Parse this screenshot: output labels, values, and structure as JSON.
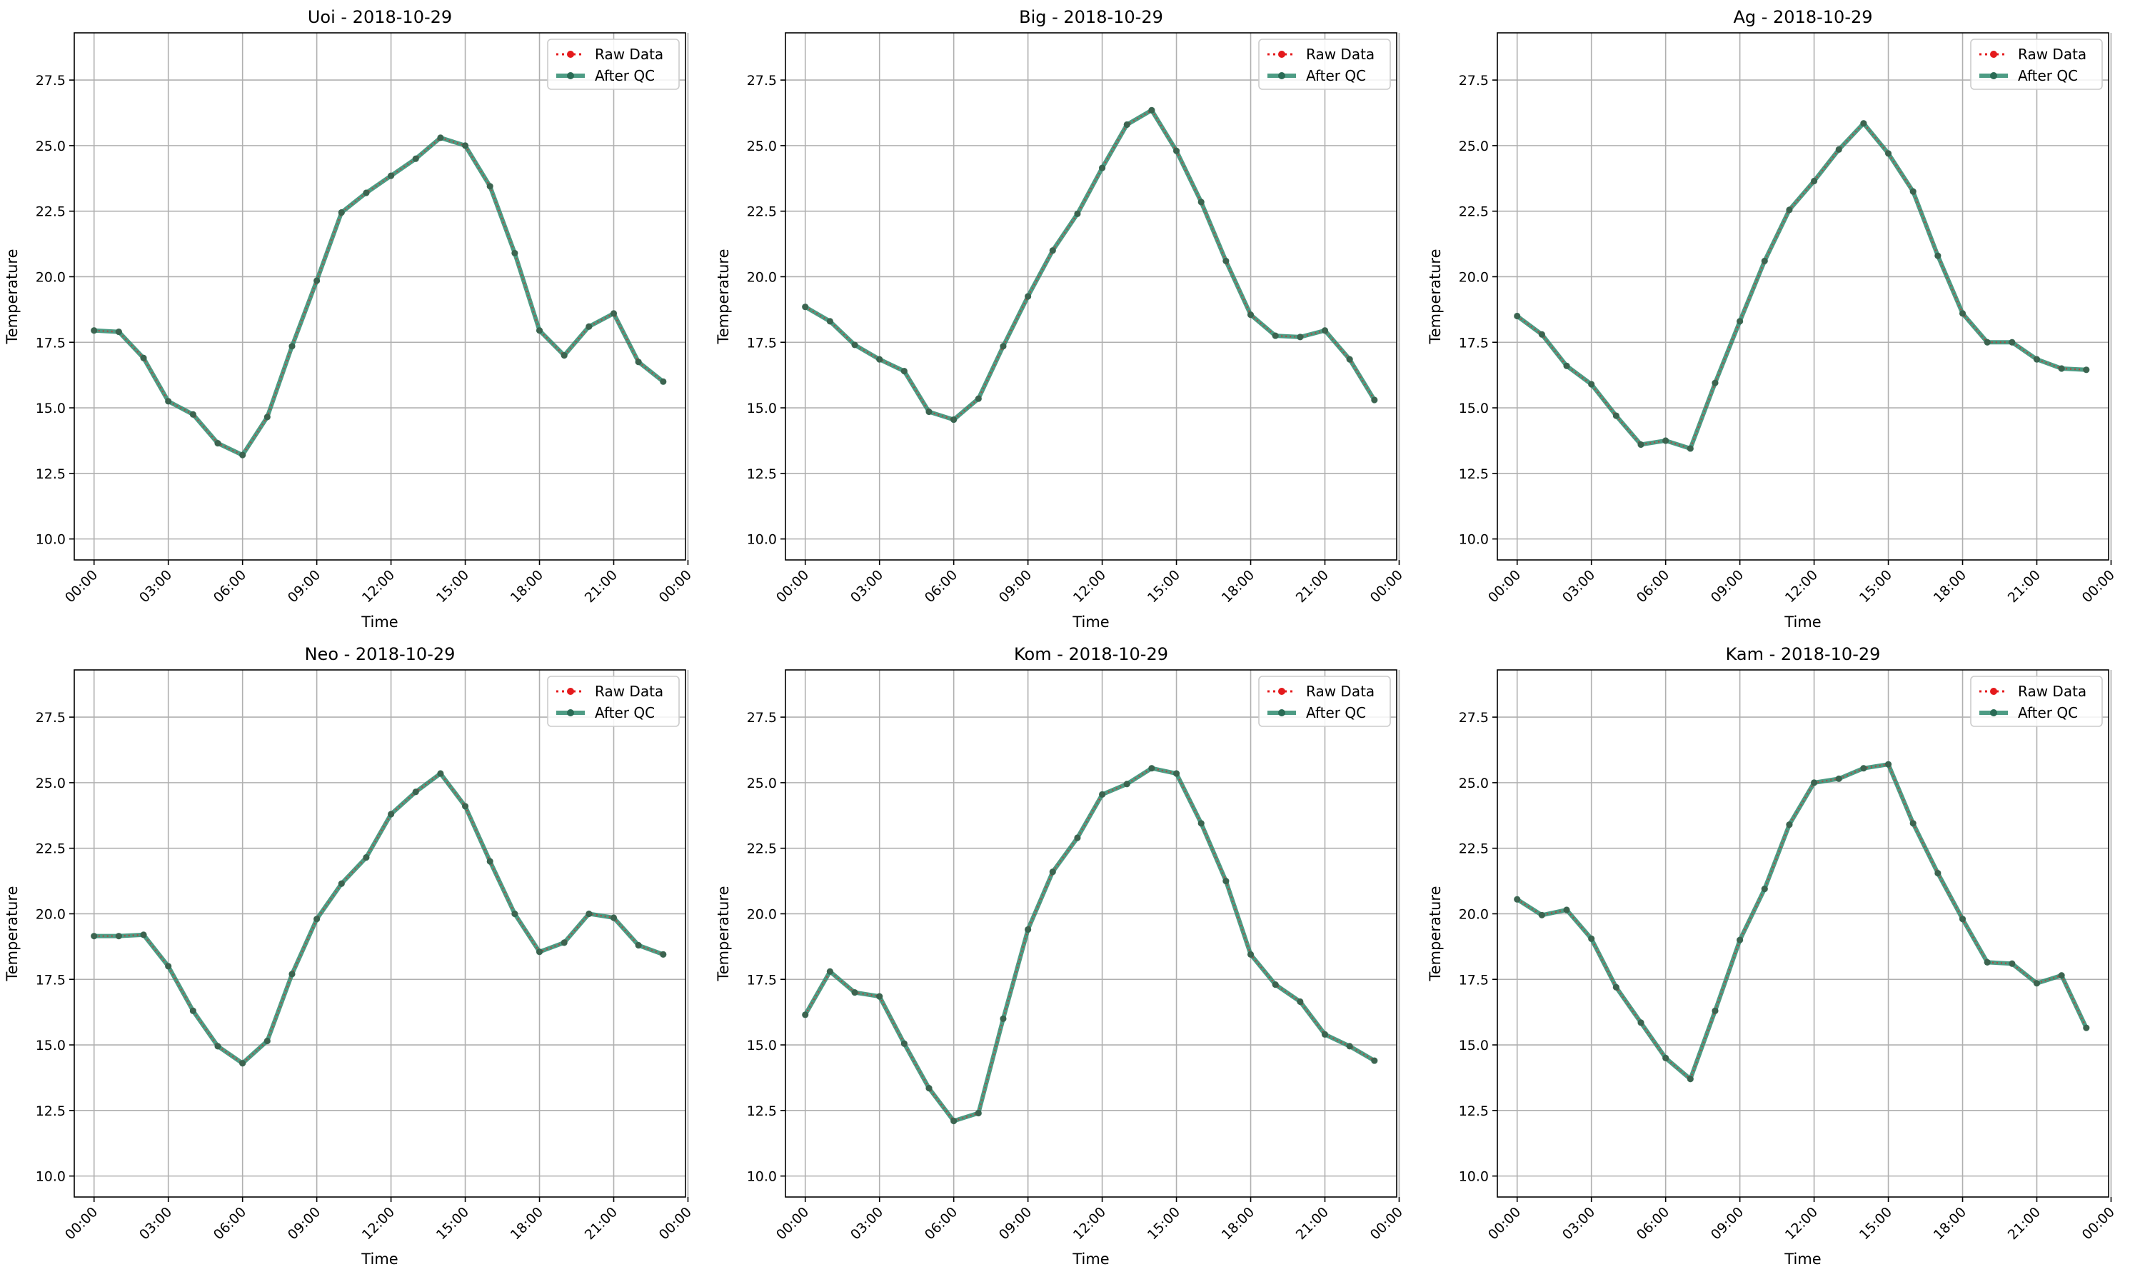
{
  "colors": {
    "raw": "#e41a1c",
    "qc": "#2e8b6e",
    "qc_marker": "#2a6b55",
    "grid": "#b0b0b0",
    "legend_border": "#cccccc"
  },
  "chart_data": [
    {
      "type": "line",
      "title": "Uoi - 2018-10-29",
      "xlabel": "Time",
      "ylabel": "Temperature",
      "ylim": [
        9.2,
        29.3
      ],
      "xlim": [
        -0.8,
        23.9
      ],
      "grid": true,
      "legend_position": "top-right",
      "x_tick_labels": [
        "00:00",
        "03:00",
        "06:00",
        "09:00",
        "12:00",
        "15:00",
        "18:00",
        "21:00",
        "00:00"
      ],
      "x_tick_positions": [
        0,
        3,
        6,
        9,
        12,
        15,
        18,
        21,
        24
      ],
      "y_tick_labels": [
        "10.0",
        "12.5",
        "15.0",
        "17.5",
        "20.0",
        "22.5",
        "25.0",
        "27.5"
      ],
      "y_tick_positions": [
        10,
        12.5,
        15,
        17.5,
        20,
        22.5,
        25,
        27.5
      ],
      "x": [
        0,
        1,
        2,
        3,
        4,
        5,
        6,
        7,
        8,
        9,
        10,
        11,
        12,
        13,
        14,
        15,
        16,
        17,
        18,
        19,
        20,
        21,
        22,
        23
      ],
      "series": [
        {
          "name": "Raw Data",
          "values": [
            17.95,
            17.9,
            16.9,
            15.25,
            14.75,
            13.65,
            13.2,
            14.65,
            17.35,
            19.85,
            22.45,
            23.2,
            23.85,
            24.5,
            25.3,
            25.0,
            23.45,
            20.9,
            17.95,
            17.0,
            18.1,
            18.6,
            16.75,
            16.0
          ]
        },
        {
          "name": "After QC",
          "values": [
            17.95,
            17.9,
            16.9,
            15.25,
            14.75,
            13.65,
            13.2,
            14.65,
            17.35,
            19.85,
            22.45,
            23.2,
            23.85,
            24.5,
            25.3,
            25.0,
            23.45,
            20.9,
            17.95,
            17.0,
            18.1,
            18.6,
            16.75,
            16.0
          ]
        }
      ]
    },
    {
      "type": "line",
      "title": "Big - 2018-10-29",
      "xlabel": "Time",
      "ylabel": "Temperature",
      "ylim": [
        9.2,
        29.3
      ],
      "xlim": [
        -0.8,
        23.9
      ],
      "grid": true,
      "legend_position": "top-right",
      "x_tick_labels": [
        "00:00",
        "03:00",
        "06:00",
        "09:00",
        "12:00",
        "15:00",
        "18:00",
        "21:00",
        "00:00"
      ],
      "x_tick_positions": [
        0,
        3,
        6,
        9,
        12,
        15,
        18,
        21,
        24
      ],
      "y_tick_labels": [
        "10.0",
        "12.5",
        "15.0",
        "17.5",
        "20.0",
        "22.5",
        "25.0",
        "27.5"
      ],
      "y_tick_positions": [
        10,
        12.5,
        15,
        17.5,
        20,
        22.5,
        25,
        27.5
      ],
      "x": [
        0,
        1,
        2,
        3,
        4,
        5,
        6,
        7,
        8,
        9,
        10,
        11,
        12,
        13,
        14,
        15,
        16,
        17,
        18,
        19,
        20,
        21,
        22,
        23
      ],
      "series": [
        {
          "name": "Raw Data",
          "values": [
            18.85,
            18.3,
            17.4,
            16.85,
            16.4,
            14.85,
            14.55,
            15.35,
            17.35,
            19.25,
            21.0,
            22.4,
            24.15,
            25.8,
            26.35,
            24.8,
            22.85,
            20.6,
            18.55,
            17.75,
            17.7,
            17.95,
            16.85,
            15.3
          ]
        },
        {
          "name": "After QC",
          "values": [
            18.85,
            18.3,
            17.4,
            16.85,
            16.4,
            14.85,
            14.55,
            15.35,
            17.35,
            19.25,
            21.0,
            22.4,
            24.15,
            25.8,
            26.35,
            24.8,
            22.85,
            20.6,
            18.55,
            17.75,
            17.7,
            17.95,
            16.85,
            15.3
          ]
        }
      ]
    },
    {
      "type": "line",
      "title": "Ag - 2018-10-29",
      "xlabel": "Time",
      "ylabel": "Temperature",
      "ylim": [
        9.2,
        29.3
      ],
      "xlim": [
        -0.8,
        23.9
      ],
      "grid": true,
      "legend_position": "top-right",
      "x_tick_labels": [
        "00:00",
        "03:00",
        "06:00",
        "09:00",
        "12:00",
        "15:00",
        "18:00",
        "21:00",
        "00:00"
      ],
      "x_tick_positions": [
        0,
        3,
        6,
        9,
        12,
        15,
        18,
        21,
        24
      ],
      "y_tick_labels": [
        "10.0",
        "12.5",
        "15.0",
        "17.5",
        "20.0",
        "22.5",
        "25.0",
        "27.5"
      ],
      "y_tick_positions": [
        10,
        12.5,
        15,
        17.5,
        20,
        22.5,
        25,
        27.5
      ],
      "x": [
        0,
        1,
        2,
        3,
        4,
        5,
        6,
        7,
        8,
        9,
        10,
        11,
        12,
        13,
        14,
        15,
        16,
        17,
        18,
        19,
        20,
        21,
        22,
        23
      ],
      "series": [
        {
          "name": "Raw Data",
          "values": [
            18.5,
            17.8,
            16.6,
            15.9,
            14.7,
            13.6,
            13.75,
            13.45,
            15.95,
            18.3,
            20.6,
            22.55,
            23.65,
            24.85,
            25.85,
            24.7,
            23.25,
            20.8,
            18.6,
            17.5,
            17.5,
            16.85,
            16.5,
            16.45
          ]
        },
        {
          "name": "After QC",
          "values": [
            18.5,
            17.8,
            16.6,
            15.9,
            14.7,
            13.6,
            13.75,
            13.45,
            15.95,
            18.3,
            20.6,
            22.55,
            23.65,
            24.85,
            25.85,
            24.7,
            23.25,
            20.8,
            18.6,
            17.5,
            17.5,
            16.85,
            16.5,
            16.45
          ]
        }
      ]
    },
    {
      "type": "line",
      "title": "Neo - 2018-10-29",
      "xlabel": "Time",
      "ylabel": "Temperature",
      "ylim": [
        9.2,
        29.3
      ],
      "xlim": [
        -0.8,
        23.9
      ],
      "grid": true,
      "legend_position": "top-right",
      "x_tick_labels": [
        "00:00",
        "03:00",
        "06:00",
        "09:00",
        "12:00",
        "15:00",
        "18:00",
        "21:00",
        "00:00"
      ],
      "x_tick_positions": [
        0,
        3,
        6,
        9,
        12,
        15,
        18,
        21,
        24
      ],
      "y_tick_labels": [
        "10.0",
        "12.5",
        "15.0",
        "17.5",
        "20.0",
        "22.5",
        "25.0",
        "27.5"
      ],
      "y_tick_positions": [
        10,
        12.5,
        15,
        17.5,
        20,
        22.5,
        25,
        27.5
      ],
      "x": [
        0,
        1,
        2,
        3,
        4,
        5,
        6,
        7,
        8,
        9,
        10,
        11,
        12,
        13,
        14,
        15,
        16,
        17,
        18,
        19,
        20,
        21,
        22,
        23
      ],
      "series": [
        {
          "name": "Raw Data",
          "values": [
            19.15,
            19.15,
            19.2,
            18.0,
            16.3,
            14.95,
            14.3,
            15.15,
            17.7,
            19.8,
            21.15,
            22.15,
            23.8,
            24.65,
            25.35,
            24.1,
            22.0,
            20.0,
            18.55,
            18.9,
            20.0,
            19.85,
            18.8,
            18.45
          ]
        },
        {
          "name": "After QC",
          "values": [
            19.15,
            19.15,
            19.2,
            18.0,
            16.3,
            14.95,
            14.3,
            15.15,
            17.7,
            19.8,
            21.15,
            22.15,
            23.8,
            24.65,
            25.35,
            24.1,
            22.0,
            20.0,
            18.55,
            18.9,
            20.0,
            19.85,
            18.8,
            18.45
          ]
        }
      ]
    },
    {
      "type": "line",
      "title": "Kom - 2018-10-29",
      "xlabel": "Time",
      "ylabel": "Temperature",
      "ylim": [
        9.2,
        29.3
      ],
      "xlim": [
        -0.8,
        23.9
      ],
      "grid": true,
      "legend_position": "top-right",
      "x_tick_labels": [
        "00:00",
        "03:00",
        "06:00",
        "09:00",
        "12:00",
        "15:00",
        "18:00",
        "21:00",
        "00:00"
      ],
      "x_tick_positions": [
        0,
        3,
        6,
        9,
        12,
        15,
        18,
        21,
        24
      ],
      "y_tick_labels": [
        "10.0",
        "12.5",
        "15.0",
        "17.5",
        "20.0",
        "22.5",
        "25.0",
        "27.5"
      ],
      "y_tick_positions": [
        10,
        12.5,
        15,
        17.5,
        20,
        22.5,
        25,
        27.5
      ],
      "x": [
        0,
        1,
        2,
        3,
        4,
        5,
        6,
        7,
        8,
        9,
        10,
        11,
        12,
        13,
        14,
        15,
        16,
        17,
        18,
        19,
        20,
        21,
        22,
        23
      ],
      "series": [
        {
          "name": "Raw Data",
          "values": [
            16.15,
            17.8,
            17.0,
            16.85,
            15.05,
            13.35,
            12.1,
            12.4,
            16.0,
            19.4,
            21.6,
            22.9,
            24.55,
            24.95,
            25.55,
            25.35,
            23.45,
            21.25,
            18.45,
            17.3,
            16.65,
            15.4,
            14.95,
            14.4
          ]
        },
        {
          "name": "After QC",
          "values": [
            16.15,
            17.8,
            17.0,
            16.85,
            15.05,
            13.35,
            12.1,
            12.4,
            16.0,
            19.4,
            21.6,
            22.9,
            24.55,
            24.95,
            25.55,
            25.35,
            23.45,
            21.25,
            18.45,
            17.3,
            16.65,
            15.4,
            14.95,
            14.4
          ]
        }
      ]
    },
    {
      "type": "line",
      "title": "Kam - 2018-10-29",
      "xlabel": "Time",
      "ylabel": "Temperature",
      "ylim": [
        9.2,
        29.3
      ],
      "xlim": [
        -0.8,
        23.9
      ],
      "grid": true,
      "legend_position": "top-right",
      "x_tick_labels": [
        "00:00",
        "03:00",
        "06:00",
        "09:00",
        "12:00",
        "15:00",
        "18:00",
        "21:00",
        "00:00"
      ],
      "x_tick_positions": [
        0,
        3,
        6,
        9,
        12,
        15,
        18,
        21,
        24
      ],
      "y_tick_labels": [
        "10.0",
        "12.5",
        "15.0",
        "17.5",
        "20.0",
        "22.5",
        "25.0",
        "27.5"
      ],
      "y_tick_positions": [
        10,
        12.5,
        15,
        17.5,
        20,
        22.5,
        25,
        27.5
      ],
      "x": [
        0,
        1,
        2,
        3,
        4,
        5,
        6,
        7,
        8,
        9,
        10,
        11,
        12,
        13,
        14,
        15,
        16,
        17,
        18,
        19,
        20,
        21,
        22,
        23
      ],
      "series": [
        {
          "name": "Raw Data",
          "values": [
            20.55,
            19.95,
            20.15,
            19.05,
            17.2,
            15.85,
            14.5,
            13.7,
            16.3,
            19.0,
            20.95,
            23.4,
            25.0,
            25.15,
            25.55,
            25.7,
            23.45,
            21.55,
            19.8,
            18.15,
            18.1,
            17.35,
            17.65,
            15.65
          ]
        },
        {
          "name": "After QC",
          "values": [
            20.55,
            19.95,
            20.15,
            19.05,
            17.2,
            15.85,
            14.5,
            13.7,
            16.3,
            19.0,
            20.95,
            23.4,
            25.0,
            25.15,
            25.55,
            25.7,
            23.45,
            21.55,
            19.8,
            18.15,
            18.1,
            17.35,
            17.65,
            15.65
          ]
        }
      ]
    }
  ]
}
